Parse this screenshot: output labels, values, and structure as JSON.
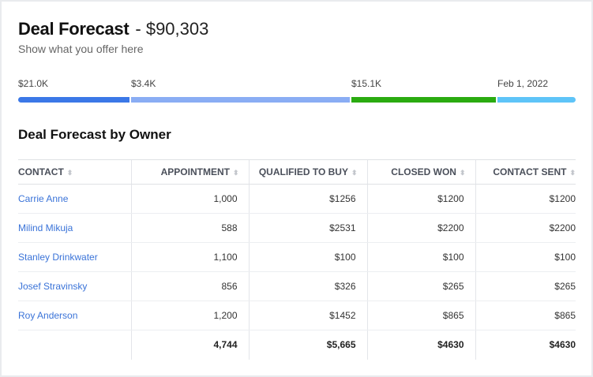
{
  "header": {
    "title": "Deal Forecast",
    "amount": "- $90,303",
    "subtitle": "Show what you offer here"
  },
  "progress": {
    "segments": [
      {
        "label": "$21.0K",
        "color": "#3b78e7"
      },
      {
        "label": "$3.4K",
        "color": "#8aadf4"
      },
      {
        "label": "$15.1K",
        "color": "#2aab10"
      },
      {
        "label": "Feb 1, 2022",
        "color": "#5ec4f8"
      }
    ]
  },
  "section_title": "Deal Forecast by Owner",
  "table": {
    "columns": [
      "CONTACT",
      "APPOINTMENT",
      "QUALIFIED TO BUY",
      "CLOSED WON",
      "CONTACT SENT"
    ],
    "sort_icon": "⬍",
    "rows": [
      [
        "Carrie Anne",
        "1,000",
        "$1256",
        "$1200",
        "$1200"
      ],
      [
        "Milind Mikuja",
        "588",
        "$2531",
        "$2200",
        "$2200"
      ],
      [
        "Stanley Drinkwater",
        "1,100",
        "$100",
        "$100",
        "$100"
      ],
      [
        "Josef Stravinsky",
        "856",
        "$326",
        "$265",
        "$265"
      ],
      [
        "Roy Anderson",
        "1,200",
        "$1452",
        "$865",
        "$865"
      ]
    ],
    "totals": [
      "",
      "4,744",
      "$5,665",
      "$4630",
      "$4630"
    ]
  }
}
